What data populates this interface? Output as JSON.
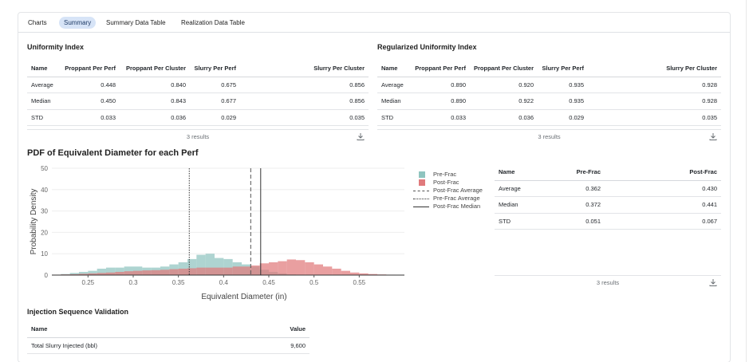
{
  "tabs": [
    {
      "label": "Charts"
    },
    {
      "label": "Summary"
    },
    {
      "label": "Summary Data Table"
    },
    {
      "label": "Realization Data Table"
    }
  ],
  "uniformity": {
    "title": "Uniformity Index",
    "columns": [
      "Name",
      "Proppant Per Perf",
      "Proppant Per Cluster",
      "Slurry Per Perf",
      "Slurry Per Cluster"
    ],
    "rows": [
      [
        "Average",
        "0.448",
        "0.840",
        "0.675",
        "0.856"
      ],
      [
        "Median",
        "0.450",
        "0.843",
        "0.677",
        "0.856"
      ],
      [
        "STD",
        "0.033",
        "0.036",
        "0.029",
        "0.035"
      ]
    ],
    "results": "3 results"
  },
  "regularized": {
    "title": "Regularized Uniformity Index",
    "columns": [
      "Name",
      "Proppant Per Perf",
      "Proppant Per Cluster",
      "Slurry Per Perf",
      "Slurry Per Cluster"
    ],
    "rows": [
      [
        "Average",
        "0.890",
        "0.920",
        "0.935",
        "0.928"
      ],
      [
        "Median",
        "0.890",
        "0.922",
        "0.935",
        "0.928"
      ],
      [
        "STD",
        "0.033",
        "0.036",
        "0.029",
        "0.035"
      ]
    ],
    "results": "3 results"
  },
  "pdf_title": "PDF of Equivalent Diameter for each Perf",
  "chart_data": {
    "type": "bar",
    "xlabel": "Equivalent Diameter (in)",
    "ylabel": "Probability Density",
    "xlim": [
      0.21,
      0.6
    ],
    "ylim": [
      0,
      50
    ],
    "xticks": [
      "0.25",
      "0.3",
      "0.35",
      "0.4",
      "0.45",
      "0.5",
      "0.55"
    ],
    "yticks": [
      "0",
      "10",
      "20",
      "30",
      "40",
      "50"
    ],
    "bin_width": 0.01,
    "series": [
      {
        "name": "Pre-Frac",
        "color": "#8fc4bf",
        "x": [
          0.21,
          0.22,
          0.23,
          0.24,
          0.25,
          0.26,
          0.27,
          0.28,
          0.29,
          0.3,
          0.31,
          0.32,
          0.33,
          0.34,
          0.35,
          0.36,
          0.37,
          0.38,
          0.39,
          0.4,
          0.41,
          0.42,
          0.43,
          0.44,
          0.45,
          0.46,
          0.47
        ],
        "values": [
          0.2,
          0.5,
          1,
          1.5,
          2,
          3,
          3.5,
          3.5,
          4,
          4,
          3.5,
          3.5,
          4,
          5,
          6,
          7.5,
          9.5,
          10,
          8,
          7.5,
          6,
          5,
          4,
          2.5,
          1.5,
          0.8,
          0.3
        ]
      },
      {
        "name": "Post-Frac",
        "color": "#e07a7c",
        "x": [
          0.21,
          0.22,
          0.23,
          0.24,
          0.25,
          0.26,
          0.27,
          0.28,
          0.29,
          0.3,
          0.31,
          0.32,
          0.33,
          0.34,
          0.35,
          0.36,
          0.37,
          0.38,
          0.39,
          0.4,
          0.41,
          0.42,
          0.43,
          0.44,
          0.45,
          0.46,
          0.47,
          0.48,
          0.49,
          0.5,
          0.51,
          0.52,
          0.53,
          0.54,
          0.55,
          0.56,
          0.57,
          0.58,
          0.59
        ],
        "values": [
          0.2,
          0.3,
          0.4,
          0.6,
          0.8,
          1,
          1.2,
          1.5,
          1.8,
          2,
          2.2,
          2.3,
          2.5,
          2.8,
          3,
          3.2,
          3.5,
          3.5,
          3.5,
          3.5,
          4,
          4,
          4.5,
          5.5,
          6,
          6.5,
          7.3,
          7,
          6,
          5,
          4,
          3,
          2,
          1.2,
          0.8,
          0.5,
          0.3,
          0.2,
          0.1
        ]
      }
    ],
    "lines": [
      {
        "name": "Post-Frac Average",
        "x": 0.43,
        "style": "dashed",
        "color": "#555555"
      },
      {
        "name": "Pre-Frac Average",
        "x": 0.362,
        "style": "dotted",
        "color": "#333333"
      },
      {
        "name": "Post-Frac Median",
        "x": 0.441,
        "style": "solid",
        "color": "#333333"
      }
    ],
    "legend_position": "right"
  },
  "stats": {
    "columns": [
      "Name",
      "Pre-Frac",
      "Post-Frac"
    ],
    "rows": [
      [
        "Average",
        "0.362",
        "0.430"
      ],
      [
        "Median",
        "0.372",
        "0.441"
      ],
      [
        "STD",
        "0.051",
        "0.067"
      ]
    ],
    "results": "3 results"
  },
  "injection": {
    "title": "Injection Sequence Validation",
    "columns": [
      "Name",
      "Value"
    ],
    "rows": [
      [
        "Total Slurry Injected (bbl)",
        "9,600"
      ]
    ]
  },
  "icons": {
    "download": "download-icon"
  }
}
